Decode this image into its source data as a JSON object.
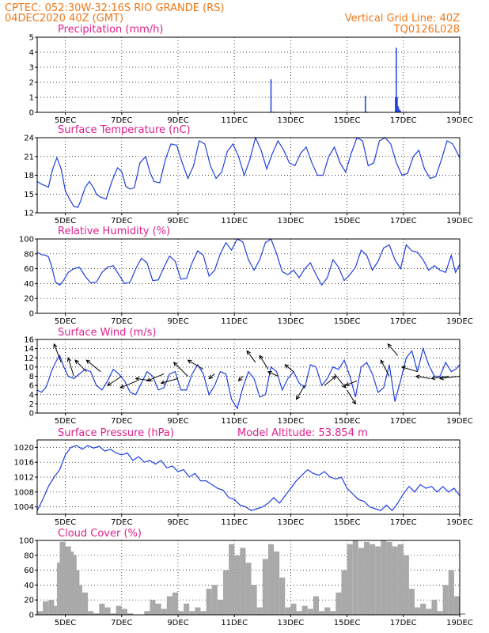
{
  "header": {
    "line1": "CPTEC:  052:30W-32:16S  RIO GRANDE (RS)",
    "line2": "04DEC2020 40Z (GMT)",
    "grid_note": "Vertical Grid Line: 40Z",
    "code": "TQ0126L028"
  },
  "colors": {
    "header": "#f07818",
    "title": "#e0208c",
    "line": "#2040e0",
    "bars": "#a9a9a9",
    "arrows": "#000000"
  },
  "x_axis": {
    "start_day": 4.0,
    "end_day": 19.0,
    "tick_days": [
      5,
      7,
      9,
      11,
      13,
      15,
      17,
      19
    ],
    "tick_labels": [
      "5DEC",
      "7DEC",
      "9DEC",
      "11DEC",
      "13DEC",
      "15DEC",
      "17DEC",
      "19DEC"
    ]
  },
  "model_altitude": "Model Altitude: 53.854  m",
  "chart_data": [
    {
      "id": "precip",
      "type": "bar",
      "title": "Precipitation  (mm/h)",
      "ylim": [
        0,
        5
      ],
      "yticks": [
        0,
        1,
        2,
        3,
        4,
        5
      ],
      "grid": true,
      "x": [
        4.9,
        5.2,
        5.5,
        6.0,
        7.0,
        8.0,
        9.0,
        10.0,
        11.0,
        11.5,
        12.3,
        12.4,
        14.6,
        15.65,
        15.7,
        16.72,
        16.75,
        16.78,
        16.82,
        16.86,
        16.9,
        17.1,
        17.5
      ],
      "values": [
        0.05,
        0.03,
        0.02,
        0.03,
        0.03,
        0.02,
        0.02,
        0.02,
        0.02,
        0.03,
        2.2,
        0.05,
        0.04,
        1.1,
        0.05,
        1.0,
        4.3,
        1.0,
        0.4,
        0.2,
        0.1,
        0.05,
        0.03
      ]
    },
    {
      "id": "temp",
      "type": "line",
      "title": "Surface Temperature (nC)",
      "ylim": [
        12,
        24
      ],
      "yticks": [
        12,
        15,
        18,
        21,
        24
      ],
      "grid": true,
      "x": [
        4.0,
        4.15,
        4.3,
        4.4,
        4.55,
        4.7,
        4.85,
        5.0,
        5.15,
        5.3,
        5.45,
        5.55,
        5.7,
        5.85,
        6.0,
        6.1,
        6.25,
        6.45,
        6.65,
        6.85,
        7.0,
        7.15,
        7.3,
        7.45,
        7.65,
        7.85,
        8.0,
        8.15,
        8.35,
        8.55,
        8.75,
        8.95,
        9.15,
        9.35,
        9.55,
        9.75,
        9.95,
        10.15,
        10.35,
        10.55,
        10.75,
        10.95,
        11.15,
        11.35,
        11.55,
        11.75,
        11.95,
        12.15,
        12.35,
        12.55,
        12.75,
        12.95,
        13.15,
        13.35,
        13.55,
        13.75,
        13.95,
        14.15,
        14.35,
        14.55,
        14.75,
        14.95,
        15.15,
        15.35,
        15.55,
        15.75,
        15.95,
        16.15,
        16.35,
        16.55,
        16.75,
        16.95,
        17.15,
        17.35,
        17.55,
        17.75,
        17.95,
        18.15,
        18.35,
        18.55,
        18.75,
        19.0
      ],
      "values": [
        17.0,
        16.6,
        16.3,
        16.1,
        19.0,
        20.8,
        19.0,
        15.5,
        14.2,
        13.0,
        12.9,
        14.0,
        16.0,
        17.0,
        16.0,
        15.0,
        14.5,
        14.2,
        17.0,
        19.2,
        18.6,
        16.2,
        15.8,
        16.0,
        20.0,
        21.0,
        18.5,
        17.0,
        16.8,
        20.5,
        23.0,
        22.8,
        20.0,
        17.5,
        19.5,
        23.5,
        23.0,
        19.5,
        17.5,
        18.5,
        21.8,
        23.0,
        21.0,
        18.0,
        20.5,
        24.0,
        22.0,
        19.0,
        21.5,
        23.5,
        22.0,
        20.0,
        19.5,
        21.5,
        22.5,
        20.0,
        18.0,
        18.0,
        21.0,
        22.5,
        20.0,
        18.5,
        21.5,
        24.0,
        23.5,
        19.5,
        20.0,
        23.5,
        24.0,
        23.0,
        20.0,
        18.0,
        18.3,
        21.0,
        22.0,
        19.0,
        17.5,
        17.8,
        20.5,
        23.5,
        23.0,
        20.8
      ]
    },
    {
      "id": "rh",
      "type": "line",
      "title": "Relative Humidity  (%)",
      "ylim": [
        0,
        100
      ],
      "yticks": [
        0,
        20,
        40,
        60,
        80,
        100
      ],
      "grid": true,
      "x": [
        4.0,
        4.15,
        4.3,
        4.4,
        4.5,
        4.65,
        4.8,
        4.95,
        5.1,
        5.3,
        5.5,
        5.7,
        5.9,
        6.1,
        6.3,
        6.5,
        6.7,
        6.9,
        7.1,
        7.3,
        7.5,
        7.7,
        7.9,
        8.1,
        8.3,
        8.5,
        8.7,
        8.9,
        9.1,
        9.3,
        9.5,
        9.7,
        9.9,
        10.1,
        10.3,
        10.5,
        10.7,
        10.9,
        11.1,
        11.3,
        11.5,
        11.7,
        11.9,
        12.1,
        12.3,
        12.5,
        12.7,
        12.9,
        13.1,
        13.3,
        13.5,
        13.7,
        13.9,
        14.1,
        14.3,
        14.5,
        14.7,
        14.9,
        15.1,
        15.3,
        15.5,
        15.7,
        15.9,
        16.1,
        16.3,
        16.5,
        16.7,
        16.9,
        17.1,
        17.3,
        17.5,
        17.7,
        17.9,
        18.1,
        18.3,
        18.5,
        18.7,
        18.85,
        19.0
      ],
      "values": [
        82,
        79,
        78,
        76,
        65,
        42,
        38,
        45,
        55,
        60,
        62,
        50,
        41,
        42,
        55,
        62,
        64,
        52,
        40,
        42,
        60,
        74,
        68,
        44,
        45,
        62,
        77,
        70,
        46,
        47,
        68,
        84,
        78,
        50,
        58,
        80,
        95,
        85,
        100,
        96,
        72,
        58,
        72,
        95,
        100,
        80,
        56,
        52,
        58,
        48,
        60,
        68,
        52,
        38,
        48,
        72,
        62,
        44,
        52,
        62,
        85,
        78,
        58,
        70,
        88,
        92,
        72,
        60,
        92,
        84,
        82,
        72,
        58,
        64,
        58,
        55,
        78,
        55,
        66
      ]
    },
    {
      "id": "wind",
      "type": "line",
      "title": "Surface Wind  (m/s)",
      "ylim": [
        0,
        16
      ],
      "yticks": [
        0,
        2,
        4,
        6,
        8,
        10,
        12,
        14,
        16
      ],
      "grid": true,
      "x": [
        4.0,
        4.15,
        4.3,
        4.4,
        4.5,
        4.65,
        4.8,
        4.95,
        5.1,
        5.3,
        5.5,
        5.7,
        5.9,
        6.1,
        6.3,
        6.5,
        6.7,
        6.9,
        7.1,
        7.3,
        7.5,
        7.7,
        7.9,
        8.1,
        8.3,
        8.5,
        8.7,
        8.9,
        9.1,
        9.3,
        9.5,
        9.7,
        9.9,
        10.1,
        10.3,
        10.5,
        10.7,
        10.9,
        11.1,
        11.3,
        11.5,
        11.7,
        11.9,
        12.1,
        12.3,
        12.5,
        12.7,
        12.9,
        13.1,
        13.3,
        13.5,
        13.7,
        13.9,
        14.1,
        14.3,
        14.5,
        14.7,
        14.9,
        15.1,
        15.3,
        15.5,
        15.7,
        15.9,
        16.1,
        16.3,
        16.5,
        16.7,
        16.9,
        17.1,
        17.3,
        17.5,
        17.7,
        17.9,
        18.1,
        18.3,
        18.5,
        18.7,
        18.85,
        19.0
      ],
      "values": [
        5.0,
        4.5,
        5.5,
        7.0,
        9.0,
        11.0,
        12.5,
        10.0,
        8.0,
        7.5,
        8.5,
        9.5,
        9.0,
        6.0,
        5.0,
        7.0,
        9.5,
        8.5,
        7.0,
        4.5,
        4.0,
        6.5,
        9.0,
        8.0,
        5.0,
        5.5,
        8.5,
        9.0,
        5.0,
        5.0,
        8.5,
        10.5,
        8.5,
        4.0,
        6.0,
        9.0,
        8.5,
        3.0,
        1.0,
        5.5,
        9.0,
        7.5,
        3.5,
        4.0,
        10.0,
        9.0,
        5.0,
        7.5,
        9.0,
        6.5,
        5.5,
        10.5,
        10.0,
        6.0,
        7.5,
        10.0,
        9.5,
        11.5,
        8.0,
        3.5,
        10.0,
        11.0,
        8.5,
        4.5,
        5.5,
        10.5,
        2.5,
        7.0,
        12.0,
        13.5,
        9.0,
        14.0,
        10.5,
        8.0,
        8.0,
        11.0,
        9.0,
        9.5,
        10.5
      ]
    },
    {
      "id": "pressure",
      "type": "line",
      "title": "Surface Pressure  (hPa)",
      "ylim": [
        1002,
        1022
      ],
      "yticks": [
        1004,
        1008,
        1012,
        1016,
        1020
      ],
      "grid": true,
      "x": [
        4.0,
        4.2,
        4.4,
        4.6,
        4.8,
        5.0,
        5.2,
        5.4,
        5.6,
        5.8,
        6.0,
        6.2,
        6.4,
        6.6,
        6.8,
        7.0,
        7.2,
        7.4,
        7.6,
        7.8,
        8.0,
        8.2,
        8.4,
        8.6,
        8.8,
        9.0,
        9.2,
        9.4,
        9.6,
        9.8,
        10.0,
        10.2,
        10.4,
        10.6,
        10.8,
        11.0,
        11.2,
        11.4,
        11.6,
        11.8,
        12.0,
        12.2,
        12.4,
        12.6,
        12.8,
        13.0,
        13.2,
        13.4,
        13.6,
        13.8,
        14.0,
        14.2,
        14.4,
        14.6,
        14.8,
        15.0,
        15.2,
        15.4,
        15.6,
        15.8,
        16.0,
        16.2,
        16.4,
        16.6,
        16.8,
        17.0,
        17.2,
        17.4,
        17.6,
        17.8,
        18.0,
        18.2,
        18.4,
        18.6,
        18.8,
        19.0
      ],
      "values": [
        1003.0,
        1006.0,
        1009.5,
        1012.0,
        1014.0,
        1018.0,
        1020.0,
        1020.5,
        1019.5,
        1020.5,
        1019.8,
        1020.3,
        1019.0,
        1019.5,
        1018.5,
        1018.0,
        1018.5,
        1016.5,
        1017.5,
        1016.0,
        1016.5,
        1015.5,
        1016.5,
        1014.5,
        1015.0,
        1013.5,
        1014.0,
        1012.0,
        1013.0,
        1011.0,
        1011.0,
        1010.0,
        1009.0,
        1008.5,
        1006.5,
        1006.0,
        1004.5,
        1004.0,
        1003.0,
        1003.5,
        1004.0,
        1005.0,
        1006.5,
        1005.0,
        1007.0,
        1009.0,
        1011.0,
        1012.5,
        1014.0,
        1013.0,
        1012.5,
        1013.5,
        1012.0,
        1011.5,
        1012.0,
        1009.0,
        1007.5,
        1006.0,
        1005.5,
        1004.0,
        1003.5,
        1003.0,
        1004.5,
        1003.0,
        1005.0,
        1007.5,
        1009.5,
        1008.0,
        1010.0,
        1009.0,
        1009.5,
        1008.0,
        1009.5,
        1008.0,
        1009.0,
        1007.0
      ]
    },
    {
      "id": "cloud",
      "type": "area",
      "title": "Cloud Cover  (%)",
      "ylim": [
        0,
        100
      ],
      "yticks": [
        0,
        20,
        40,
        60,
        80,
        100
      ],
      "grid": true,
      "x": [
        4.0,
        4.2,
        4.4,
        4.5,
        4.7,
        4.8,
        4.9,
        5.0,
        5.1,
        5.2,
        5.3,
        5.4,
        5.6,
        5.8,
        6.0,
        6.2,
        6.4,
        6.6,
        6.8,
        7.0,
        7.2,
        7.4,
        7.6,
        7.8,
        8.0,
        8.2,
        8.4,
        8.6,
        8.8,
        9.0,
        9.2,
        9.4,
        9.6,
        9.8,
        10.0,
        10.2,
        10.4,
        10.6,
        10.8,
        11.0,
        11.2,
        11.4,
        11.6,
        11.8,
        12.0,
        12.2,
        12.4,
        12.6,
        12.8,
        13.0,
        13.2,
        13.4,
        13.6,
        13.8,
        14.0,
        14.2,
        14.4,
        14.6,
        14.8,
        15.0,
        15.2,
        15.4,
        15.6,
        15.8,
        16.0,
        16.2,
        16.4,
        16.6,
        16.8,
        17.0,
        17.2,
        17.4,
        17.6,
        17.8,
        18.0,
        18.2,
        18.4,
        18.6,
        18.8,
        19.0
      ],
      "values": [
        5,
        18,
        20,
        12,
        70,
        98,
        90,
        92,
        85,
        80,
        60,
        40,
        30,
        5,
        2,
        15,
        10,
        2,
        12,
        8,
        2,
        0,
        0,
        5,
        20,
        15,
        8,
        25,
        30,
        5,
        15,
        5,
        10,
        5,
        35,
        40,
        20,
        60,
        95,
        80,
        90,
        70,
        40,
        10,
        75,
        95,
        85,
        50,
        10,
        15,
        5,
        12,
        8,
        25,
        5,
        10,
        5,
        30,
        60,
        95,
        100,
        90,
        98,
        95,
        92,
        100,
        98,
        92,
        95,
        80,
        35,
        10,
        15,
        8,
        20,
        5,
        40,
        60,
        25,
        2
      ]
    }
  ],
  "wind_vectors": {
    "x": [
      4.85,
      5.3,
      5.75,
      6.25,
      7.0,
      7.55,
      8.1,
      8.5,
      9.0,
      9.35,
      9.9,
      10.3,
      11.3,
      11.75,
      12.2,
      12.55,
      13.1,
      13.5,
      14.2,
      14.55,
      15.0,
      15.35,
      16.5,
      16.8,
      17.5,
      17.95,
      18.6,
      19.0
    ],
    "y": [
      11.0,
      8.0,
      9.0,
      9.0,
      8.0,
      7.0,
      7.0,
      8.5,
      7.5,
      8.0,
      9.5,
      8.5,
      8.0,
      11.0,
      9.5,
      8.0,
      9.0,
      6.0,
      6.0,
      8.5,
      5.0,
      7.0,
      8.0,
      12.5,
      9.0,
      7.5,
      8.0,
      8.0
    ],
    "dx": [
      -0.25,
      -0.2,
      -0.4,
      -0.5,
      -0.5,
      -0.6,
      -0.6,
      -0.6,
      -0.6,
      -0.5,
      -0.55,
      -0.2,
      -0.15,
      -0.3,
      -0.3,
      -0.35,
      -0.3,
      -0.3,
      0.4,
      0.4,
      0.3,
      -0.4,
      -0.3,
      -0.35,
      -0.55,
      -0.5,
      -0.6,
      -0.7
    ],
    "dy": [
      4.0,
      4.0,
      2.5,
      2.5,
      -2.0,
      -1.5,
      0.5,
      -1.5,
      -1.0,
      3.0,
      2.0,
      -1.0,
      -1.0,
      2.5,
      3.0,
      1.0,
      1.5,
      -3.0,
      2.0,
      -3.0,
      -3.0,
      -1.0,
      3.5,
      2.5,
      1.0,
      0.5,
      -0.5,
      -0.5
    ]
  }
}
